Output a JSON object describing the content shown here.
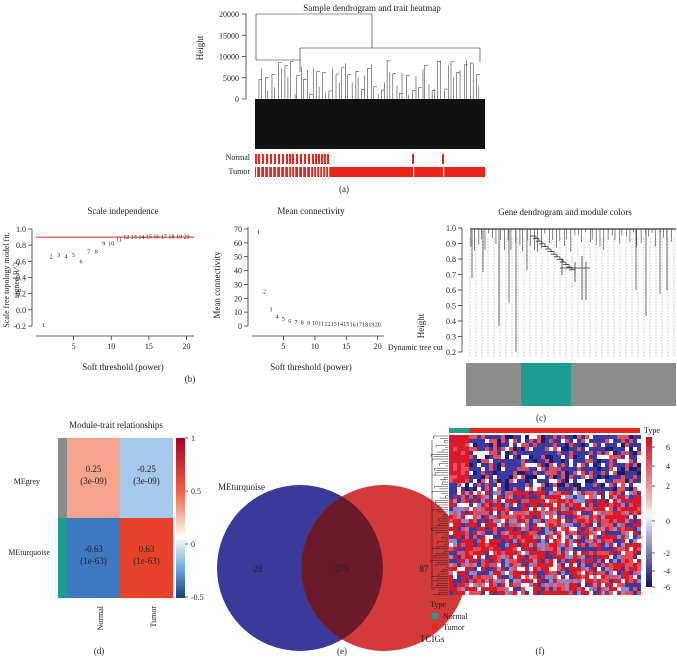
{
  "panel_a": {
    "title": "Sample dendrogram and trait heatmap",
    "ylabel": "Height",
    "yticks": [
      "20000",
      "15000",
      "10000",
      "5000",
      "0"
    ],
    "row_labels": [
      "Normal",
      "Tumor"
    ],
    "caption": "(a)"
  },
  "panel_b1": {
    "title": "Scale independence",
    "ylabel_line1": "Scale free topology model fit,",
    "ylabel_line2": "signed R^2",
    "xlabel": "Soft threshold (power)",
    "yticks": [
      "1.0",
      "0.8",
      "0.6",
      "0.4",
      "0.2",
      "0.0",
      "-0.2"
    ],
    "xticks": [
      "5",
      "10",
      "15",
      "20"
    ],
    "caption": "(b)"
  },
  "panel_b2": {
    "title": "Mean connectivity",
    "ylabel": "Mean connectivity",
    "xlabel": "Soft threshold (power)",
    "yticks": [
      "70",
      "60",
      "50",
      "40",
      "30",
      "20",
      "10",
      "0"
    ],
    "xticks": [
      "5",
      "10",
      "15",
      "20"
    ]
  },
  "panel_c": {
    "title": "Gene dendrogram and module colors",
    "ylabel": "Height",
    "yticks": [
      "1.0",
      "0.9",
      "0.8",
      "0.7",
      "0.6",
      "0.5",
      "0.4",
      "0.3",
      "0.2"
    ],
    "row_label": "Dynamic tree cut",
    "caption": "(c)"
  },
  "panel_d": {
    "title": "Module-trait relationships",
    "cells": [
      {
        "corr": "0.25",
        "p": "(3e-09)"
      },
      {
        "corr": "-0.25",
        "p": "(3e-09)"
      },
      {
        "corr": "-0.63",
        "p": "(1e-63)"
      },
      {
        "corr": "0.63",
        "p": "(1e-63)"
      }
    ],
    "row_labels": [
      "MEgrey",
      "MEturquoise"
    ],
    "col_labels": [
      "Normal",
      "Tumor"
    ],
    "legend_ticks": [
      "1",
      "0.5",
      "0",
      "-0.5"
    ],
    "caption": "(d)"
  },
  "panel_e": {
    "label_left": "MEturquoise",
    "label_right": "TCIGs",
    "left_only": "28",
    "overlap": "275",
    "right_only": "87",
    "caption": "(e)"
  },
  "panel_f": {
    "type_label": "Type",
    "scale_ticks": [
      "6",
      "4",
      "2",
      "0",
      "-2",
      "-4",
      "-6"
    ],
    "legend_title": "Type",
    "legend_items": [
      "Normal",
      "Tumor"
    ],
    "caption": "(f)"
  },
  "colors": {
    "red": "#e8261b",
    "turquoise": "#1f9c92",
    "grey": "#8c8c8c",
    "navy": "#2c2c7c",
    "venn_left": "#3a3a9a",
    "venn_right": "#d23a3a",
    "venn_overlap": "#6a1a2a"
  },
  "chart_data": [
    {
      "type": "scatter",
      "title": "Scale independence",
      "xlabel": "Soft threshold (power)",
      "ylabel": "Scale free topology model fit, signed R^2",
      "x": [
        1,
        2,
        3,
        4,
        5,
        6,
        7,
        8,
        9,
        10,
        11,
        12,
        13,
        14,
        15,
        16,
        17,
        18,
        19,
        20
      ],
      "y": [
        -0.19,
        0.66,
        0.68,
        0.66,
        0.68,
        0.6,
        0.72,
        0.72,
        0.82,
        0.82,
        0.87,
        0.9,
        0.9,
        0.9,
        0.91,
        0.91,
        0.91,
        0.91,
        0.91,
        0.91
      ],
      "hline": 0.9,
      "xlim": [
        0,
        21
      ],
      "ylim": [
        -0.2,
        1.0
      ]
    },
    {
      "type": "scatter",
      "title": "Mean connectivity",
      "xlabel": "Soft threshold (power)",
      "ylabel": "Mean connectivity",
      "x": [
        1,
        2,
        3,
        4,
        5,
        6,
        7,
        8,
        9,
        10,
        11,
        12,
        13,
        14,
        15,
        16,
        17,
        18,
        19,
        20
      ],
      "y": [
        68,
        25,
        12,
        7,
        5,
        3.5,
        3,
        2.5,
        2,
        2,
        1.8,
        1.6,
        1.5,
        1.4,
        1.3,
        1.2,
        1.1,
        1.0,
        1.0,
        1.0
      ],
      "xlim": [
        0,
        21
      ],
      "ylim": [
        0,
        70
      ]
    },
    {
      "type": "heatmap",
      "title": "Module-trait relationships",
      "rows": [
        "MEgrey",
        "MEturquoise"
      ],
      "cols": [
        "Normal",
        "Tumor"
      ],
      "values": [
        [
          0.25,
          -0.25
        ],
        [
          -0.63,
          0.63
        ]
      ],
      "pvalues": [
        [
          "3e-09",
          "3e-09"
        ],
        [
          "1e-63",
          "1e-63"
        ]
      ],
      "zlim": [
        -0.5,
        1
      ]
    },
    {
      "type": "table",
      "title": "Venn",
      "sets": [
        "MEturquoise",
        "TCIGs"
      ],
      "left_only": 28,
      "overlap": 275,
      "right_only": 87
    }
  ]
}
